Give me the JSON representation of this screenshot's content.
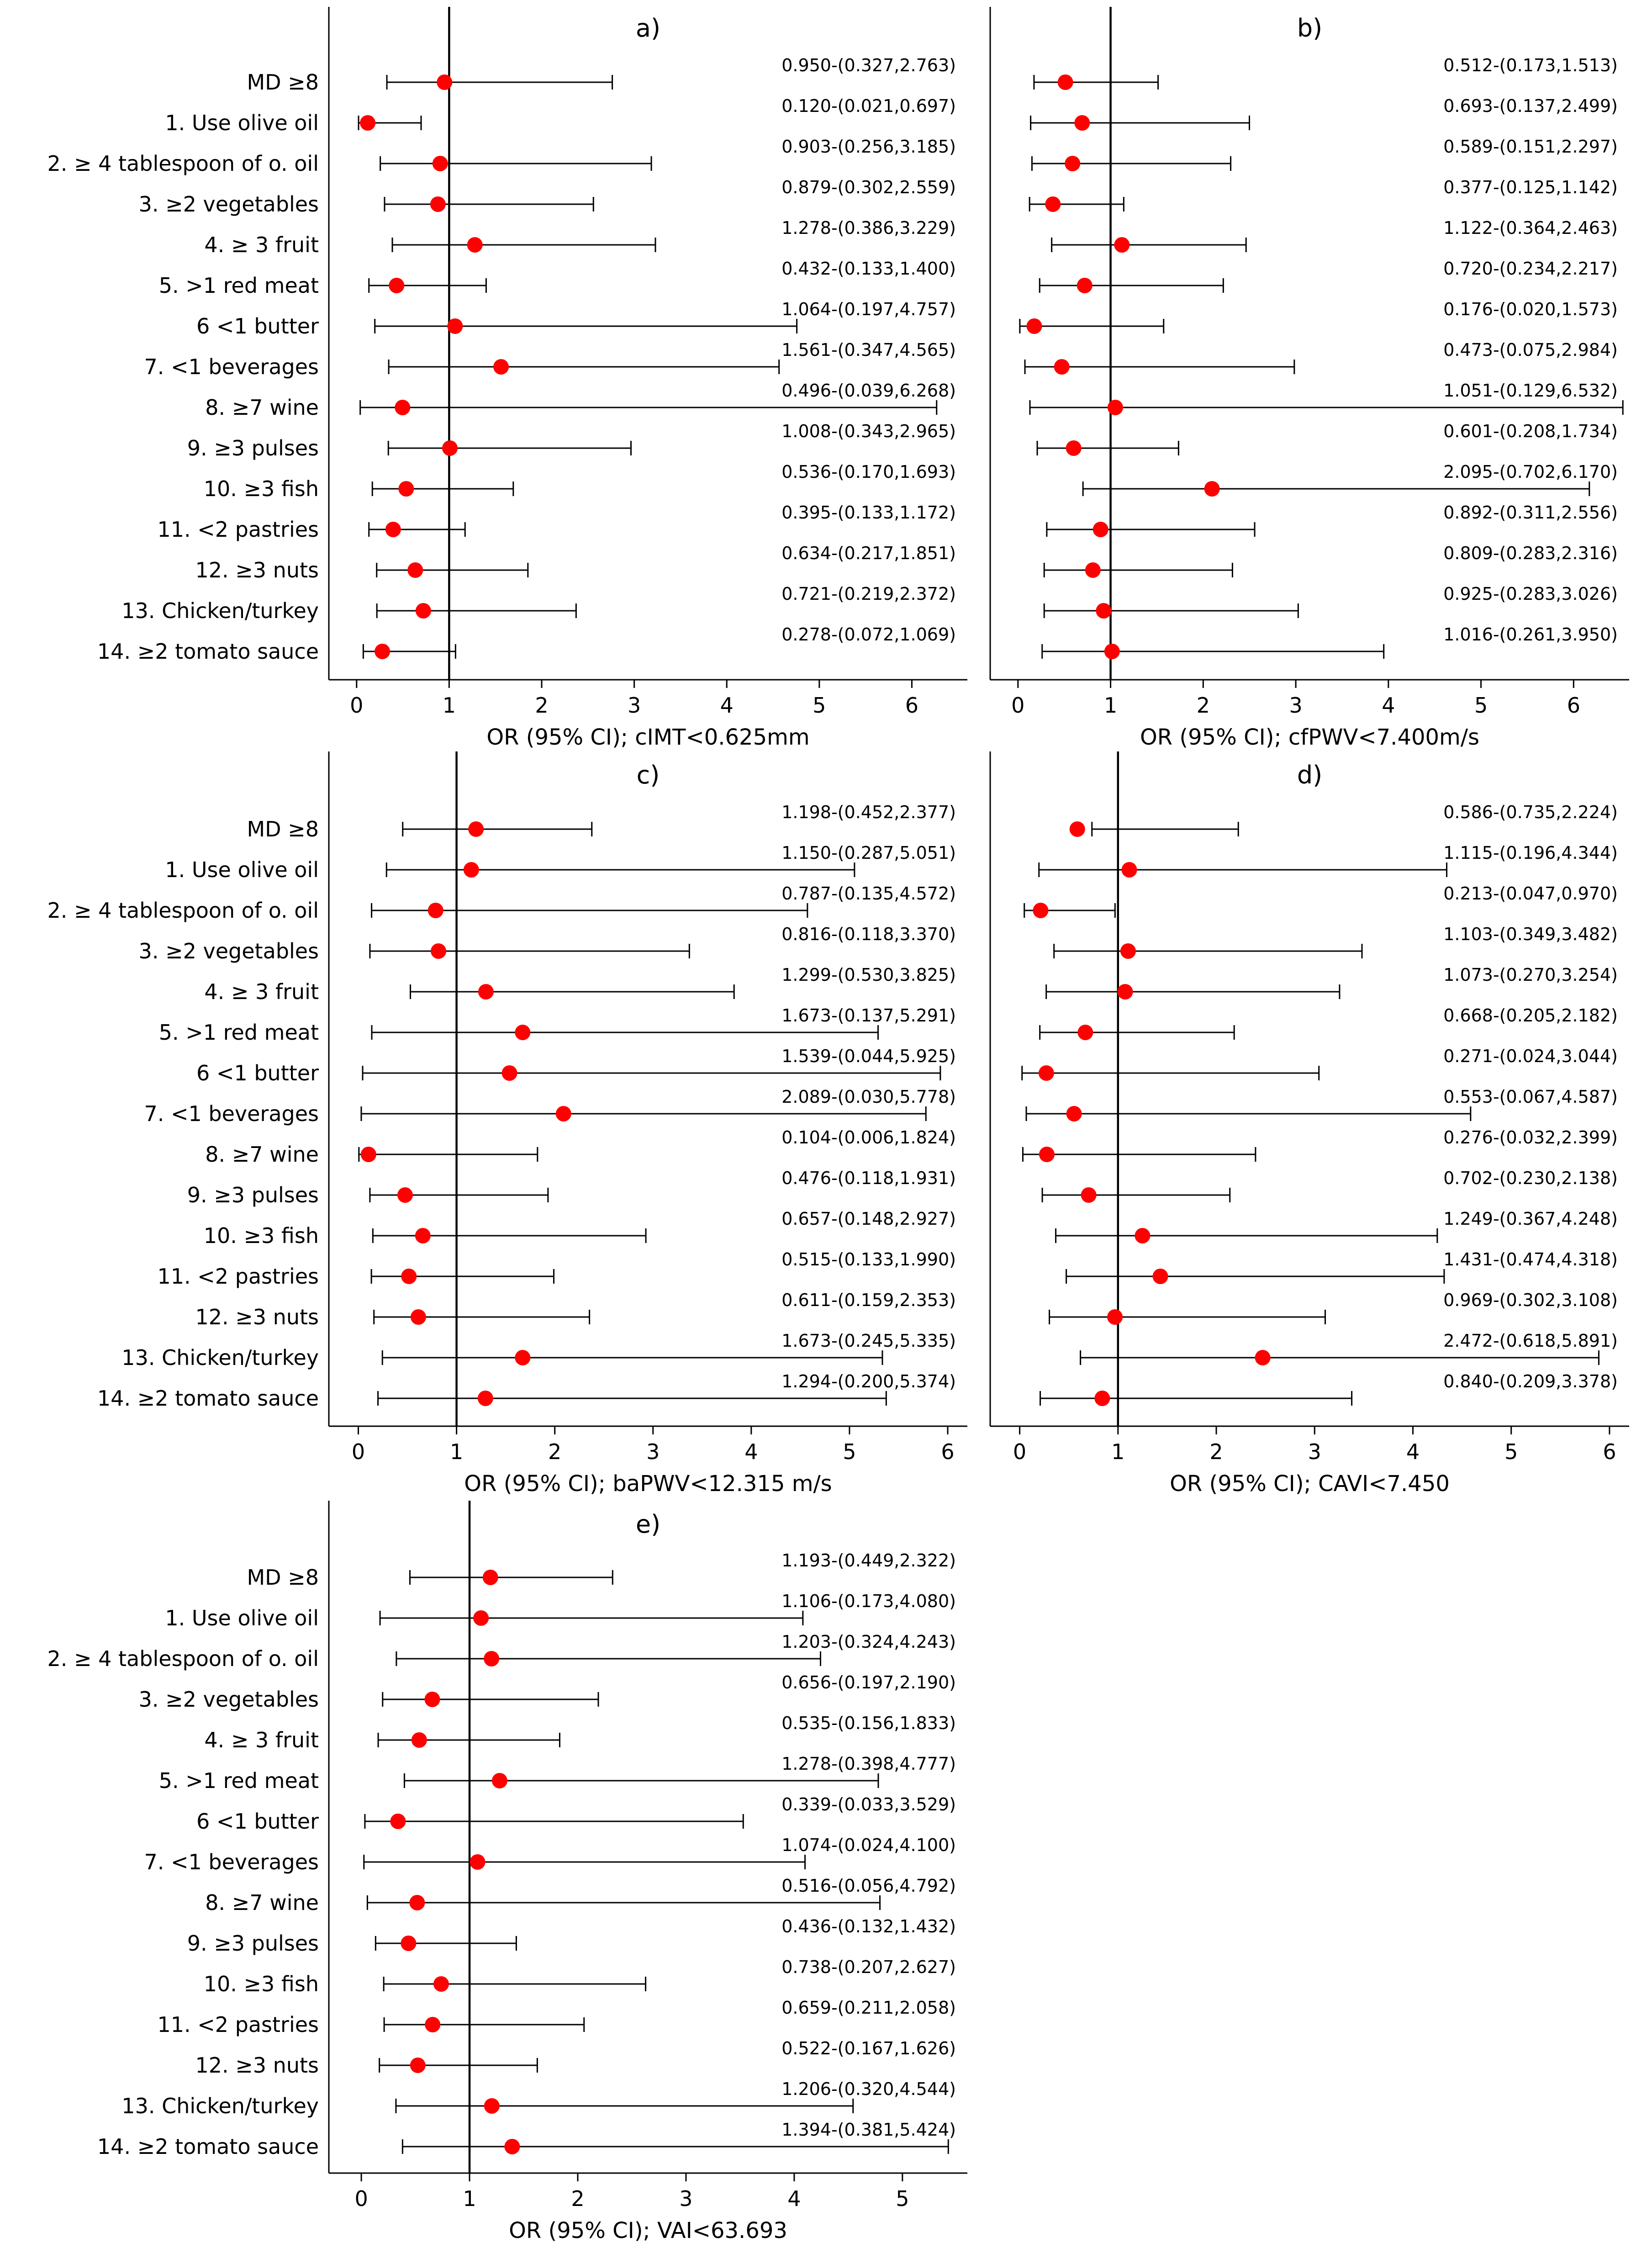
{
  "colors": {
    "point": "#ff0000",
    "line": "#000000",
    "axis": "#000000"
  },
  "chart_data": [
    {
      "type": "forest",
      "title": "a)",
      "xlabel": "OR (95% CI); cIMT<0.625mm",
      "xlim": [
        -0.3,
        6.6
      ],
      "xticks": [
        0,
        1,
        2,
        3,
        4,
        5,
        6
      ],
      "reference_line": 1,
      "categories": [
        "MD ≥8",
        "1. Use olive oil",
        "2. ≥ 4 tablespoon of o. oil",
        "3. ≥2 vegetables",
        "4. ≥ 3 fruit",
        "5. >1 red meat",
        "6 <1 butter",
        "7. <1 beverages",
        "8. ≥7 wine",
        "9. ≥3 pulses",
        "10. ≥3 fish",
        "11. <2 pastries",
        "12. ≥3 nuts",
        "13. Chicken/turkey",
        "14. ≥2 tomato sauce"
      ],
      "or": [
        0.95,
        0.12,
        0.903,
        0.879,
        1.278,
        0.432,
        1.064,
        1.561,
        0.496,
        1.008,
        0.536,
        0.395,
        0.634,
        0.721,
        0.278
      ],
      "lower": [
        0.327,
        0.021,
        0.256,
        0.302,
        0.386,
        0.133,
        0.197,
        0.347,
        0.039,
        0.343,
        0.17,
        0.133,
        0.217,
        0.219,
        0.072
      ],
      "upper": [
        2.763,
        0.697,
        3.185,
        2.559,
        3.229,
        1.4,
        4.757,
        4.565,
        6.268,
        2.965,
        1.693,
        1.172,
        1.851,
        2.372,
        1.069
      ],
      "value_labels": [
        "0.950-(0.327,2.763)",
        "0.120-(0.021,0.697)",
        "0.903-(0.256,3.185)",
        "0.879-(0.302,2.559)",
        "1.278-(0.386,3.229)",
        "0.432-(0.133,1.400)",
        "1.064-(0.197,4.757)",
        "1.561-(0.347,4.565)",
        "0.496-(0.039,6.268)",
        "1.008-(0.343,2.965)",
        "0.536-(0.170,1.693)",
        "0.395-(0.133,1.172)",
        "0.634-(0.217,1.851)",
        "0.721-(0.219,2.372)",
        "0.278-(0.072,1.069)"
      ]
    },
    {
      "type": "forest",
      "title": "b)",
      "xlabel": "OR (95% CI); cfPWV<7.400m/s",
      "xlim": [
        -0.3,
        6.6
      ],
      "xticks": [
        0,
        1,
        2,
        3,
        4,
        5,
        6
      ],
      "reference_line": 1,
      "categories": [],
      "or": [
        0.512,
        0.693,
        0.589,
        0.377,
        1.122,
        0.72,
        0.176,
        0.473,
        1.051,
        0.601,
        2.095,
        0.892,
        0.809,
        0.925,
        1.016
      ],
      "lower": [
        0.173,
        0.137,
        0.151,
        0.125,
        0.364,
        0.234,
        0.02,
        0.075,
        0.129,
        0.208,
        0.702,
        0.311,
        0.283,
        0.283,
        0.261
      ],
      "upper": [
        1.513,
        2.499,
        2.297,
        1.142,
        2.463,
        2.217,
        1.573,
        2.984,
        6.532,
        1.734,
        6.17,
        2.556,
        2.316,
        3.026,
        3.95
      ],
      "value_labels": [
        "0.512-(0.173,1.513)",
        "0.693-(0.137,2.499)",
        "0.589-(0.151,2.297)",
        "0.377-(0.125,1.142)",
        "1.122-(0.364,2.463)",
        "0.720-(0.234,2.217)",
        "0.176-(0.020,1.573)",
        "0.473-(0.075,2.984)",
        "1.051-(0.129,6.532)",
        "0.601-(0.208,1.734)",
        "2.095-(0.702,6.170)",
        "0.892-(0.311,2.556)",
        "0.809-(0.283,2.316)",
        "0.925-(0.283,3.026)",
        "1.016-(0.261,3.950)"
      ]
    },
    {
      "type": "forest",
      "title": "c)",
      "xlabel": "OR (95% CI); baPWV<12.315 m/s",
      "xlim": [
        -0.3,
        6.2
      ],
      "xticks": [
        0,
        1,
        2,
        3,
        4,
        5,
        6
      ],
      "reference_line": 1,
      "categories": [
        "MD ≥8",
        "1. Use olive oil",
        "2. ≥ 4 tablespoon of o. oil",
        "3. ≥2 vegetables",
        "4. ≥ 3 fruit",
        "5. >1 red meat",
        "6 <1 butter",
        "7. <1 beverages",
        "8. ≥7 wine",
        "9. ≥3 pulses",
        "10. ≥3 fish",
        "11. <2 pastries",
        "12. ≥3 nuts",
        "13. Chicken/turkey",
        "14. ≥2 tomato sauce"
      ],
      "or": [
        1.198,
        1.15,
        0.787,
        0.816,
        1.299,
        1.673,
        1.539,
        2.089,
        0.104,
        0.476,
        0.657,
        0.515,
        0.611,
        1.673,
        1.294
      ],
      "lower": [
        0.452,
        0.287,
        0.135,
        0.118,
        0.53,
        0.137,
        0.044,
        0.03,
        0.006,
        0.118,
        0.148,
        0.133,
        0.159,
        0.245,
        0.2
      ],
      "upper": [
        2.377,
        5.051,
        4.572,
        3.37,
        3.825,
        5.291,
        5.925,
        5.778,
        1.824,
        1.931,
        2.927,
        1.99,
        2.353,
        5.335,
        5.374
      ],
      "value_labels": [
        "1.198-(0.452,2.377)",
        "1.150-(0.287,5.051)",
        "0.787-(0.135,4.572)",
        "0.816-(0.118,3.370)",
        "1.299-(0.530,3.825)",
        "1.673-(0.137,5.291)",
        "1.539-(0.044,5.925)",
        "2.089-(0.030,5.778)",
        "0.104-(0.006,1.824)",
        "0.476-(0.118,1.931)",
        "0.657-(0.148,2.927)",
        "0.515-(0.133,1.990)",
        "0.611-(0.159,2.353)",
        "1.673-(0.245,5.335)",
        "1.294-(0.200,5.374)"
      ]
    },
    {
      "type": "forest",
      "title": "d)",
      "xlabel": "OR (95% CI); CAVI<7.450",
      "xlim": [
        -0.3,
        6.2
      ],
      "xticks": [
        0,
        1,
        2,
        3,
        4,
        5,
        6
      ],
      "reference_line": 1,
      "categories": [],
      "or": [
        0.586,
        1.115,
        0.213,
        1.103,
        1.073,
        0.668,
        0.271,
        0.553,
        0.276,
        0.702,
        1.249,
        1.431,
        0.969,
        2.472,
        0.84
      ],
      "lower": [
        0.735,
        0.196,
        0.047,
        0.349,
        0.27,
        0.205,
        0.024,
        0.067,
        0.032,
        0.23,
        0.367,
        0.474,
        0.302,
        0.618,
        0.209
      ],
      "upper": [
        2.224,
        4.344,
        0.97,
        3.482,
        3.254,
        2.182,
        3.044,
        4.587,
        2.399,
        2.138,
        4.248,
        4.318,
        3.108,
        5.891,
        3.378
      ],
      "value_labels": [
        "0.586-(0.735,2.224)",
        "1.115-(0.196,4.344)",
        "0.213-(0.047,0.970)",
        "1.103-(0.349,3.482)",
        "1.073-(0.270,3.254)",
        "0.668-(0.205,2.182)",
        "0.271-(0.024,3.044)",
        "0.553-(0.067,4.587)",
        "0.276-(0.032,2.399)",
        "0.702-(0.230,2.138)",
        "1.249-(0.367,4.248)",
        "1.431-(0.474,4.318)",
        "0.969-(0.302,3.108)",
        "2.472-(0.618,5.891)",
        "0.840-(0.209,3.378)"
      ]
    },
    {
      "type": "forest",
      "title": "e)",
      "xlabel": "OR (95% CI); VAI<63.693",
      "xlim": [
        -0.3,
        5.6
      ],
      "xticks": [
        0,
        1,
        2,
        3,
        4,
        5
      ],
      "reference_line": 1,
      "categories": [
        "MD ≥8",
        "1. Use olive oil",
        "2. ≥ 4 tablespoon of o. oil",
        "3. ≥2 vegetables",
        "4. ≥ 3 fruit",
        "5. >1 red meat",
        "6 <1 butter",
        "7. <1 beverages",
        "8. ≥7 wine",
        "9. ≥3 pulses",
        "10. ≥3 fish",
        "11. <2 pastries",
        "12. ≥3 nuts",
        "13. Chicken/turkey",
        "14. ≥2 tomato sauce"
      ],
      "or": [
        1.193,
        1.106,
        1.203,
        0.656,
        0.535,
        1.278,
        0.339,
        1.074,
        0.516,
        0.436,
        0.738,
        0.659,
        0.522,
        1.206,
        1.394
      ],
      "lower": [
        0.449,
        0.173,
        0.324,
        0.197,
        0.156,
        0.398,
        0.033,
        0.024,
        0.056,
        0.132,
        0.207,
        0.211,
        0.167,
        0.32,
        0.381
      ],
      "upper": [
        2.322,
        4.08,
        4.243,
        2.19,
        1.833,
        4.777,
        3.529,
        4.1,
        4.792,
        1.432,
        2.627,
        2.058,
        1.626,
        4.544,
        5.424
      ],
      "value_labels": [
        "1.193-(0.449,2.322)",
        "1.106-(0.173,4.080)",
        "1.203-(0.324,4.243)",
        "0.656-(0.197,2.190)",
        "0.535-(0.156,1.833)",
        "1.278-(0.398,4.777)",
        "0.339-(0.033,3.529)",
        "1.074-(0.024,4.100)",
        "0.516-(0.056,4.792)",
        "0.436-(0.132,1.432)",
        "0.738-(0.207,2.627)",
        "0.659-(0.211,2.058)",
        "0.522-(0.167,1.626)",
        "1.206-(0.320,4.544)",
        "1.394-(0.381,5.424)"
      ]
    }
  ]
}
